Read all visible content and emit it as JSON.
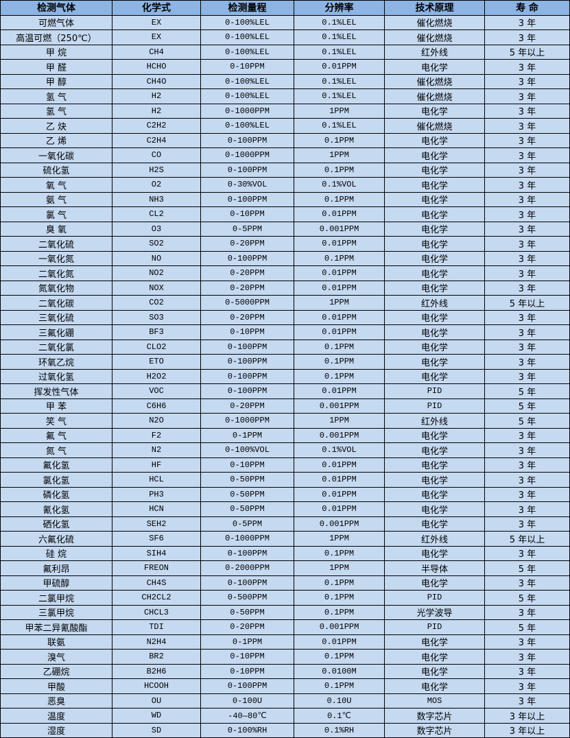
{
  "colors": {
    "header_bg": "#8db4e2",
    "row_bg": "#c5d9f1",
    "border": "#000000"
  },
  "headers": [
    "检测气体",
    "化学式",
    "检测量程",
    "分辨率",
    "技术原理",
    "寿 命"
  ],
  "rows": [
    [
      "可燃气体",
      "EX",
      "0-100%LEL",
      "0.1%LEL",
      "催化燃烧",
      "3 年"
    ],
    [
      "高温可燃（250℃）",
      "EX",
      "0-100%LEL",
      "0.1%LEL",
      "催化燃烧",
      "3 年"
    ],
    [
      "甲 烷",
      "CH4",
      "0-100%LEL",
      "0.1%LEL",
      "红外线",
      "5 年以上"
    ],
    [
      "甲 醛",
      "HCHO",
      "0-10PPM",
      "0.01PPM",
      "电化学",
      "3 年"
    ],
    [
      "甲 醇",
      "CH4O",
      "0-100%LEL",
      "0.1%LEL",
      "催化燃烧",
      "3 年"
    ],
    [
      "氢 气",
      "H2",
      "0-100%LEL",
      "0.1%LEL",
      "催化燃烧",
      "3 年"
    ],
    [
      "氢 气",
      "H2",
      "0-1000PPM",
      "1PPM",
      "电化学",
      "3 年"
    ],
    [
      "乙 炔",
      "C2H2",
      "0-100%LEL",
      "0.1%LEL",
      "催化燃烧",
      "3 年"
    ],
    [
      "乙 烯",
      "C2H4",
      "0-100PPM",
      "0.1PPM",
      "电化学",
      "3 年"
    ],
    [
      "一氧化碳",
      "CO",
      "0-1000PPM",
      "1PPM",
      "电化学",
      "3 年"
    ],
    [
      "硫化氢",
      "H2S",
      "0-100PPM",
      "0.1PPM",
      "电化学",
      "3 年"
    ],
    [
      "氧 气",
      "O2",
      "0-30%VOL",
      "0.1%VOL",
      "电化学",
      "3 年"
    ],
    [
      "氨 气",
      "NH3",
      "0-100PPM",
      "0.1PPM",
      "电化学",
      "3 年"
    ],
    [
      "氯 气",
      "CL2",
      "0-10PPM",
      "0.01PPM",
      "电化学",
      "3 年"
    ],
    [
      "臭 氧",
      "O3",
      "0-5PPM",
      "0.001PPM",
      "电化学",
      "3 年"
    ],
    [
      "二氧化硫",
      "SO2",
      "0-20PPM",
      "0.01PPM",
      "电化学",
      "3 年"
    ],
    [
      "一氧化氮",
      "NO",
      "0-100PPM",
      "0.1PPM",
      "电化学",
      "3 年"
    ],
    [
      "二氧化氮",
      "NO2",
      "0-20PPM",
      "0.01PPM",
      "电化学",
      "3 年"
    ],
    [
      "氮氧化物",
      "NOX",
      "0-20PPM",
      "0.01PPM",
      "电化学",
      "3 年"
    ],
    [
      "二氧化碳",
      "CO2",
      "0-5000PPM",
      "1PPM",
      "红外线",
      "5 年以上"
    ],
    [
      "三氧化硫",
      "SO3",
      "0-20PPM",
      "0.01PPM",
      "电化学",
      "3 年"
    ],
    [
      "三氟化硼",
      "BF3",
      "0-10PPM",
      "0.01PPM",
      "电化学",
      "3 年"
    ],
    [
      "二氧化氯",
      "CLO2",
      "0-100PPM",
      "0.1PPM",
      "电化学",
      "3 年"
    ],
    [
      "环氧乙烷",
      "ETO",
      "0-100PPM",
      "0.1PPM",
      "电化学",
      "3 年"
    ],
    [
      "过氧化氢",
      "H2O2",
      "0-100PPM",
      "0.1PPM",
      "电化学",
      "3 年"
    ],
    [
      "挥发性气体",
      "VOC",
      "0-100PPM",
      "0.01PPM",
      "PID",
      "5 年"
    ],
    [
      "甲 苯",
      "C6H6",
      "0-20PPM",
      "0.001PPM",
      "PID",
      "5 年"
    ],
    [
      "笑 气",
      "N2O",
      "0-1000PPM",
      "1PPM",
      "红外线",
      "5 年"
    ],
    [
      "氟 气",
      "F2",
      "0-1PPM",
      "0.001PPM",
      "电化学",
      "3 年"
    ],
    [
      "氮 气",
      "N2",
      "0-100%VOL",
      "0.1%VOL",
      "电化学",
      "3 年"
    ],
    [
      "氟化氢",
      "HF",
      "0-10PPM",
      "0.01PPM",
      "电化学",
      "3 年"
    ],
    [
      "氯化氢",
      "HCL",
      "0-50PPM",
      "0.01PPM",
      "电化学",
      "3 年"
    ],
    [
      "磷化氢",
      "PH3",
      "0-50PPM",
      "0.01PPM",
      "电化学",
      "3 年"
    ],
    [
      "氰化氢",
      "HCN",
      "0-50PPM",
      "0.01PPM",
      "电化学",
      "3 年"
    ],
    [
      "硒化氢",
      "SEH2",
      "0-5PPM",
      "0.001PPM",
      "电化学",
      "3 年"
    ],
    [
      "六氟化硫",
      "SF6",
      "0-1000PPM",
      "1PPM",
      "红外线",
      "5 年以上"
    ],
    [
      "硅 烷",
      "SIH4",
      "0-100PPM",
      "0.1PPM",
      "电化学",
      "3 年"
    ],
    [
      "氟利昂",
      "FREON",
      "0-2000PPM",
      "1PPM",
      "半导体",
      "5 年"
    ],
    [
      "甲硫醇",
      "CH4S",
      "0-100PPM",
      "0.1PPM",
      "电化学",
      "3 年"
    ],
    [
      "二氯甲烷",
      "CH2CL2",
      "0-500PPM",
      "0.1PPM",
      "PID",
      "5 年"
    ],
    [
      "三氯甲烷",
      "CHCL3",
      "0-50PPM",
      "0.1PPM",
      "光学波导",
      "3 年"
    ],
    [
      "甲苯二异氰酸酯",
      "TDI",
      "0-20PPM",
      "0.001PPM",
      "PID",
      "5 年"
    ],
    [
      "联氨",
      "N2H4",
      "0-1PPM",
      "0.01PPM",
      "电化学",
      "3 年"
    ],
    [
      "溴气",
      "BR2",
      "0-10PPM",
      "0.1PPM",
      "电化学",
      "3 年"
    ],
    [
      "乙硼烷",
      "B2H6",
      "0-10PPM",
      "0.0100M",
      "电化学",
      "3 年"
    ],
    [
      "甲酸",
      "HCOOH",
      "0-100PPM",
      "0.1PPM",
      "电化学",
      "3 年"
    ],
    [
      "恶臭",
      "OU",
      "0-100U",
      "0.10U",
      "MOS",
      "3 年"
    ],
    [
      "温度",
      "WD",
      "-40—80℃",
      "0.1℃",
      "数字芯片",
      "3 年以上"
    ],
    [
      "湿度",
      "SD",
      "0-100%RH",
      "0.1%RH",
      "数字芯片",
      "3 年以上"
    ]
  ]
}
